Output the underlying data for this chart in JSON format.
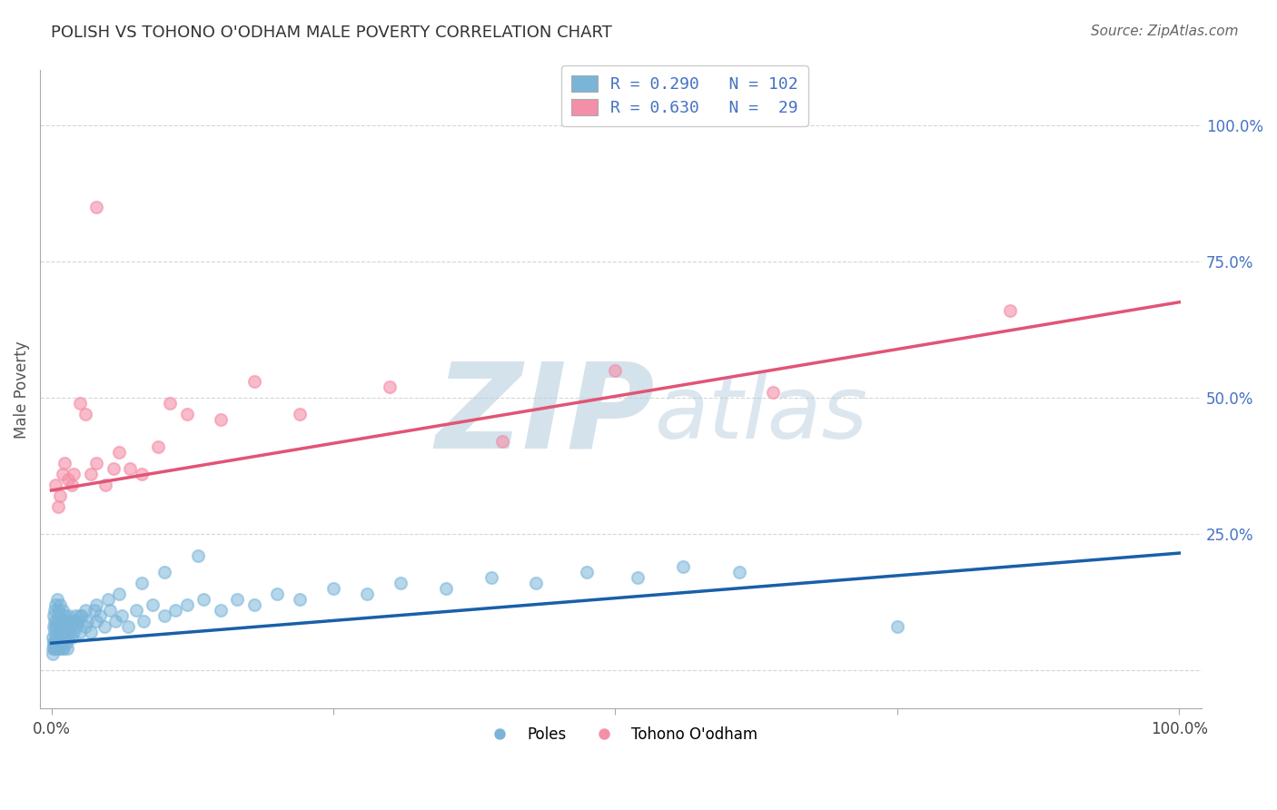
{
  "title": "POLISH VS TOHONO O'ODHAM MALE POVERTY CORRELATION CHART",
  "source": "Source: ZipAtlas.com",
  "ylabel": "Male Poverty",
  "poles_color": "#7ab5d9",
  "tohono_color": "#f48fa8",
  "poles_line_color": "#1a5fa8",
  "tohono_line_color": "#e05575",
  "grid_color": "#cccccc",
  "background_color": "#ffffff",
  "legend_text_color": "#4472c4",
  "title_color": "#333333",
  "source_color": "#666666",
  "ylabel_color": "#555555",
  "poles_trend_x0": 0.0,
  "poles_trend_y0": 0.05,
  "poles_trend_x1": 1.0,
  "poles_trend_y1": 0.215,
  "tohono_trend_x0": 0.0,
  "tohono_trend_y0": 0.33,
  "tohono_trend_x1": 1.0,
  "tohono_trend_y1": 0.675,
  "xlim_min": -0.01,
  "xlim_max": 1.02,
  "ylim_min": -0.07,
  "ylim_max": 1.1,
  "right_yticks": [
    0.0,
    0.25,
    0.5,
    0.75,
    1.0
  ],
  "right_yticklabels": [
    "",
    "25.0%",
    "50.0%",
    "75.0%",
    "100.0%"
  ],
  "marker_size": 90,
  "marker_lw": 1.5,
  "poles_x": [
    0.001,
    0.001,
    0.002,
    0.002,
    0.002,
    0.003,
    0.003,
    0.003,
    0.003,
    0.004,
    0.004,
    0.004,
    0.005,
    0.005,
    0.005,
    0.005,
    0.006,
    0.006,
    0.006,
    0.007,
    0.007,
    0.007,
    0.008,
    0.008,
    0.008,
    0.009,
    0.009,
    0.01,
    0.01,
    0.01,
    0.011,
    0.011,
    0.012,
    0.012,
    0.013,
    0.013,
    0.014,
    0.014,
    0.015,
    0.015,
    0.016,
    0.017,
    0.018,
    0.019,
    0.02,
    0.021,
    0.022,
    0.023,
    0.025,
    0.027,
    0.03,
    0.032,
    0.035,
    0.038,
    0.04,
    0.043,
    0.047,
    0.052,
    0.057,
    0.062,
    0.068,
    0.075,
    0.082,
    0.09,
    0.1,
    0.11,
    0.12,
    0.135,
    0.15,
    0.165,
    0.18,
    0.2,
    0.22,
    0.25,
    0.28,
    0.31,
    0.35,
    0.39,
    0.43,
    0.475,
    0.52,
    0.56,
    0.61,
    0.001,
    0.002,
    0.003,
    0.004,
    0.006,
    0.008,
    0.01,
    0.012,
    0.015,
    0.02,
    0.025,
    0.03,
    0.04,
    0.05,
    0.06,
    0.08,
    0.1,
    0.13,
    0.75
  ],
  "poles_y": [
    0.04,
    0.06,
    0.05,
    0.08,
    0.1,
    0.04,
    0.07,
    0.09,
    0.11,
    0.05,
    0.08,
    0.12,
    0.04,
    0.06,
    0.09,
    0.13,
    0.05,
    0.08,
    0.11,
    0.04,
    0.07,
    0.1,
    0.05,
    0.08,
    0.12,
    0.04,
    0.07,
    0.05,
    0.08,
    0.11,
    0.04,
    0.09,
    0.06,
    0.1,
    0.05,
    0.08,
    0.04,
    0.09,
    0.06,
    0.1,
    0.07,
    0.08,
    0.06,
    0.09,
    0.07,
    0.1,
    0.08,
    0.09,
    0.07,
    0.1,
    0.08,
    0.09,
    0.07,
    0.11,
    0.09,
    0.1,
    0.08,
    0.11,
    0.09,
    0.1,
    0.08,
    0.11,
    0.09,
    0.12,
    0.1,
    0.11,
    0.12,
    0.13,
    0.11,
    0.13,
    0.12,
    0.14,
    0.13,
    0.15,
    0.14,
    0.16,
    0.15,
    0.17,
    0.16,
    0.18,
    0.17,
    0.19,
    0.18,
    0.03,
    0.05,
    0.04,
    0.06,
    0.05,
    0.07,
    0.06,
    0.08,
    0.07,
    0.09,
    0.1,
    0.11,
    0.12,
    0.13,
    0.14,
    0.16,
    0.18,
    0.21,
    0.08
  ],
  "tohono_x": [
    0.004,
    0.006,
    0.008,
    0.01,
    0.012,
    0.015,
    0.018,
    0.02,
    0.025,
    0.03,
    0.035,
    0.04,
    0.048,
    0.055,
    0.06,
    0.07,
    0.08,
    0.095,
    0.105,
    0.12,
    0.15,
    0.18,
    0.22,
    0.3,
    0.4,
    0.5,
    0.64,
    0.85,
    0.04
  ],
  "tohono_y": [
    0.34,
    0.3,
    0.32,
    0.36,
    0.38,
    0.35,
    0.34,
    0.36,
    0.49,
    0.47,
    0.36,
    0.38,
    0.34,
    0.37,
    0.4,
    0.37,
    0.36,
    0.41,
    0.49,
    0.47,
    0.46,
    0.53,
    0.47,
    0.52,
    0.42,
    0.55,
    0.51,
    0.66,
    0.85
  ]
}
